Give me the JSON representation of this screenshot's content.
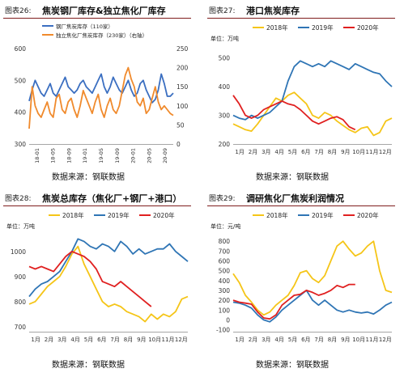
{
  "source_label": "数据来源：钢联数据",
  "chart_data": [
    {
      "label": "图表26:",
      "title": "焦炭钢厂库存&独立焦化厂库存",
      "type": "line",
      "unit": "",
      "ylim": [
        300,
        600
      ],
      "yticks": [
        "300",
        "400",
        "500",
        "600"
      ],
      "y2lim": [
        0,
        250
      ],
      "y2ticks": [
        "0",
        "50",
        "100",
        "150",
        "200",
        "250"
      ],
      "xticks": [
        "18-01",
        "18-05",
        "18-09",
        "19-01",
        "19-05",
        "19-09",
        "20-01",
        "20-05",
        "20-09"
      ],
      "legend_position": "top",
      "series": [
        {
          "name": "钢厂焦炭库存（110家）",
          "axis": "left",
          "color": "#3b6fc1",
          "values": [
            435,
            470,
            500,
            480,
            460,
            450,
            470,
            490,
            460,
            450,
            470,
            490,
            510,
            480,
            470,
            460,
            470,
            490,
            500,
            480,
            470,
            460,
            480,
            500,
            520,
            480,
            460,
            480,
            510,
            490,
            470,
            460,
            480,
            500,
            470,
            450,
            460,
            490,
            500,
            470,
            450,
            430,
            440,
            470,
            520,
            490,
            450,
            450,
            460
          ]
        },
        {
          "name": "独立焦化厂焦炭库存（230家）（右轴）",
          "axis": "right",
          "color": "#f08a2c",
          "values": [
            40,
            150,
            100,
            80,
            70,
            90,
            110,
            80,
            70,
            120,
            130,
            90,
            80,
            110,
            120,
            90,
            70,
            100,
            140,
            120,
            100,
            80,
            110,
            130,
            90,
            70,
            100,
            120,
            90,
            80,
            100,
            140,
            180,
            200,
            170,
            150,
            110,
            100,
            120,
            80,
            90,
            120,
            150,
            110,
            90,
            100,
            90,
            80,
            75
          ]
        }
      ]
    },
    {
      "label": "图表27:",
      "title": "港口焦炭库存",
      "type": "line",
      "unit": "单位：万吨",
      "ylim": [
        200,
        550
      ],
      "yticks": [
        "200",
        "300",
        "400",
        "500"
      ],
      "xticks": [
        "1月",
        "2月",
        "3月",
        "4月",
        "5月",
        "6月",
        "7月",
        "8月",
        "9月",
        "10月",
        "11月",
        "12月"
      ],
      "legend_position": "top",
      "series": [
        {
          "name": "2018年",
          "color": "#f5c518",
          "values": [
            270,
            260,
            250,
            245,
            270,
            300,
            330,
            360,
            350,
            370,
            380,
            360,
            340,
            300,
            290,
            310,
            300,
            280,
            265,
            250,
            240,
            255,
            260,
            230,
            240,
            280,
            290
          ]
        },
        {
          "name": "2019年",
          "color": "#2f75b5",
          "values": [
            300,
            290,
            285,
            300,
            290,
            300,
            310,
            330,
            350,
            420,
            470,
            490,
            480,
            470,
            480,
            470,
            490,
            480,
            470,
            460,
            480,
            470,
            460,
            450,
            445,
            420,
            400
          ]
        },
        {
          "name": "2020年",
          "color": "#e02020",
          "values": [
            370,
            340,
            300,
            290,
            300,
            320,
            330,
            340,
            350,
            340,
            335,
            320,
            300,
            280,
            270,
            280,
            290,
            295,
            285,
            260,
            250
          ]
        }
      ]
    },
    {
      "label": "图表28:",
      "title": "焦炭总库存（焦化厂+钢厂+港口）",
      "type": "line",
      "unit": "单位：万吨",
      "ylim": [
        680,
        1080
      ],
      "yticks": [
        "700",
        "800",
        "900",
        "1000"
      ],
      "xticks": [
        "1月",
        "2月",
        "3月",
        "4月",
        "5月",
        "6月",
        "7月",
        "8月",
        "9月",
        "10月",
        "11月",
        "12月"
      ],
      "legend_position": "top",
      "series": [
        {
          "name": "2018年",
          "color": "#f5c518",
          "values": [
            790,
            800,
            830,
            860,
            880,
            900,
            940,
            990,
            1020,
            950,
            900,
            850,
            800,
            780,
            790,
            780,
            760,
            750,
            740,
            720,
            750,
            730,
            750,
            740,
            760,
            810,
            820
          ]
        },
        {
          "name": "2019年",
          "color": "#2f75b5",
          "values": [
            820,
            850,
            870,
            880,
            900,
            920,
            960,
            1000,
            1050,
            1040,
            1020,
            1010,
            1030,
            1020,
            1000,
            1040,
            1020,
            990,
            1010,
            990,
            1000,
            1010,
            1010,
            1030,
            1000,
            980,
            960
          ]
        },
        {
          "name": "2020年",
          "color": "#e02020",
          "values": [
            940,
            930,
            940,
            930,
            920,
            950,
            980,
            1000,
            990,
            980,
            960,
            930,
            880,
            870,
            860,
            880,
            860,
            840,
            820,
            800,
            780
          ]
        }
      ]
    },
    {
      "label": "图表29:",
      "title": "调研焦化厂焦炭利润情况",
      "type": "line",
      "unit": "单位：元/吨",
      "ylim": [
        -120,
        900
      ],
      "yticks": [
        "-100",
        "0",
        "100",
        "200",
        "300",
        "400",
        "500",
        "600",
        "700",
        "800"
      ],
      "xticks": [
        "1月",
        "2月",
        "3月",
        "4月",
        "5月",
        "6月",
        "7月",
        "8月",
        "9月",
        "10月",
        "11月",
        "12月"
      ],
      "legend_position": "top",
      "series": [
        {
          "name": "2018年",
          "color": "#f5c518",
          "values": [
            470,
            380,
            250,
            180,
            100,
            50,
            80,
            150,
            200,
            250,
            350,
            480,
            500,
            420,
            380,
            450,
            600,
            750,
            800,
            720,
            650,
            680,
            750,
            800,
            500,
            300,
            280
          ]
        },
        {
          "name": "2019年",
          "color": "#2f75b5",
          "values": [
            180,
            170,
            150,
            120,
            50,
            0,
            -20,
            30,
            100,
            150,
            200,
            250,
            300,
            200,
            150,
            200,
            150,
            100,
            80,
            100,
            80,
            70,
            80,
            60,
            100,
            150,
            180
          ]
        },
        {
          "name": "2020年",
          "color": "#e02020",
          "values": [
            200,
            180,
            170,
            160,
            80,
            20,
            10,
            50,
            150,
            200,
            250,
            260,
            300,
            280,
            250,
            270,
            300,
            350,
            330,
            360,
            360
          ]
        }
      ]
    }
  ]
}
